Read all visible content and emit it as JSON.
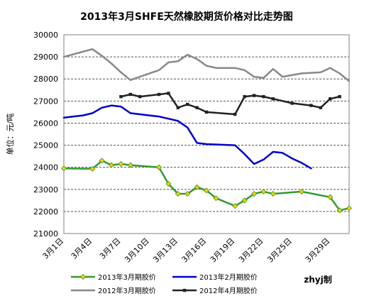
{
  "chart_data": {
    "type": "line",
    "title": "2013年3月SHFE天然橡胶期货价格对比走势图",
    "ylabel": "单位：元/吨",
    "xlabel": "",
    "ylim": [
      21000,
      30000
    ],
    "yticks": [
      21000,
      22000,
      23000,
      24000,
      25000,
      26000,
      27000,
      28000,
      29000,
      30000
    ],
    "xlim": [
      1,
      31
    ],
    "xtick_values": [
      1,
      4,
      7,
      10,
      13,
      16,
      19,
      22,
      25,
      29
    ],
    "xtick_labels": [
      "3月1日",
      "3月4日",
      "3月7日",
      "3月10日",
      "3月13日",
      "3月16日",
      "3月19日",
      "3月22日",
      "3月25日",
      "3月29日"
    ],
    "grid": "horizontal-dashed",
    "legend_placement": "bottom",
    "credit": "zhyj制",
    "series": [
      {
        "name": "2013年3月期胶价",
        "color": "#339933",
        "marker": "diamond",
        "marker_color": "#ffcc00",
        "points": [
          [
            1,
            23950
          ],
          [
            4,
            23930
          ],
          [
            5,
            24300
          ],
          [
            6,
            24100
          ],
          [
            7,
            24150
          ],
          [
            8,
            24100
          ],
          [
            11,
            24000
          ],
          [
            12,
            23250
          ],
          [
            13,
            22800
          ],
          [
            14,
            22800
          ],
          [
            15,
            23100
          ],
          [
            16,
            22950
          ],
          [
            17,
            22600
          ],
          [
            19,
            22250
          ],
          [
            20,
            22500
          ],
          [
            21,
            22800
          ],
          [
            22,
            22900
          ],
          [
            23,
            22800
          ],
          [
            26,
            22900
          ],
          [
            29,
            22650
          ],
          [
            30,
            22050
          ],
          [
            31,
            22150
          ]
        ]
      },
      {
        "name": "2013年2月期胶价",
        "color": "#0000cc",
        "marker": "none",
        "points": [
          [
            1,
            26250
          ],
          [
            2,
            26300
          ],
          [
            3,
            26350
          ],
          [
            4,
            26450
          ],
          [
            5,
            26700
          ],
          [
            6,
            26800
          ],
          [
            7,
            26750
          ],
          [
            8,
            26450
          ],
          [
            9,
            26400
          ],
          [
            10,
            26350
          ],
          [
            11,
            26300
          ],
          [
            12,
            26200
          ],
          [
            13,
            26100
          ],
          [
            14,
            25800
          ],
          [
            15,
            25100
          ],
          [
            16,
            25050
          ],
          [
            19,
            25000
          ],
          [
            20,
            24600
          ],
          [
            21,
            24150
          ],
          [
            22,
            24350
          ],
          [
            23,
            24700
          ],
          [
            24,
            24650
          ],
          [
            25,
            24400
          ],
          [
            26,
            24200
          ],
          [
            27,
            23950
          ]
        ]
      },
      {
        "name": "2012年3月期胶价",
        "color": "#888888",
        "marker": "none",
        "points": [
          [
            1,
            29000
          ],
          [
            4,
            29350
          ],
          [
            5,
            29050
          ],
          [
            6,
            28700
          ],
          [
            7,
            28300
          ],
          [
            8,
            27950
          ],
          [
            9,
            28100
          ],
          [
            11,
            28400
          ],
          [
            12,
            28750
          ],
          [
            13,
            28800
          ],
          [
            14,
            29100
          ],
          [
            15,
            28900
          ],
          [
            16,
            28600
          ],
          [
            17,
            28500
          ],
          [
            19,
            28500
          ],
          [
            20,
            28400
          ],
          [
            21,
            28100
          ],
          [
            22,
            28050
          ],
          [
            23,
            28450
          ],
          [
            24,
            28100
          ],
          [
            26,
            28250
          ],
          [
            28,
            28300
          ],
          [
            29,
            28500
          ],
          [
            30,
            28250
          ],
          [
            31,
            27900
          ]
        ]
      },
      {
        "name": "2012年4月期胶价",
        "color": "#222222",
        "marker": "square",
        "marker_color": "#222222",
        "points": [
          [
            7,
            27200
          ],
          [
            8,
            27300
          ],
          [
            9,
            27200
          ],
          [
            11,
            27300
          ],
          [
            12,
            27350
          ],
          [
            13,
            26700
          ],
          [
            14,
            26850
          ],
          [
            15,
            26700
          ],
          [
            16,
            26500
          ],
          [
            19,
            26400
          ],
          [
            20,
            27200
          ],
          [
            21,
            27250
          ],
          [
            22,
            27200
          ],
          [
            23,
            27100
          ],
          [
            25,
            26900
          ],
          [
            27,
            26800
          ],
          [
            28,
            26700
          ],
          [
            29,
            27100
          ],
          [
            30,
            27200
          ]
        ]
      }
    ]
  }
}
